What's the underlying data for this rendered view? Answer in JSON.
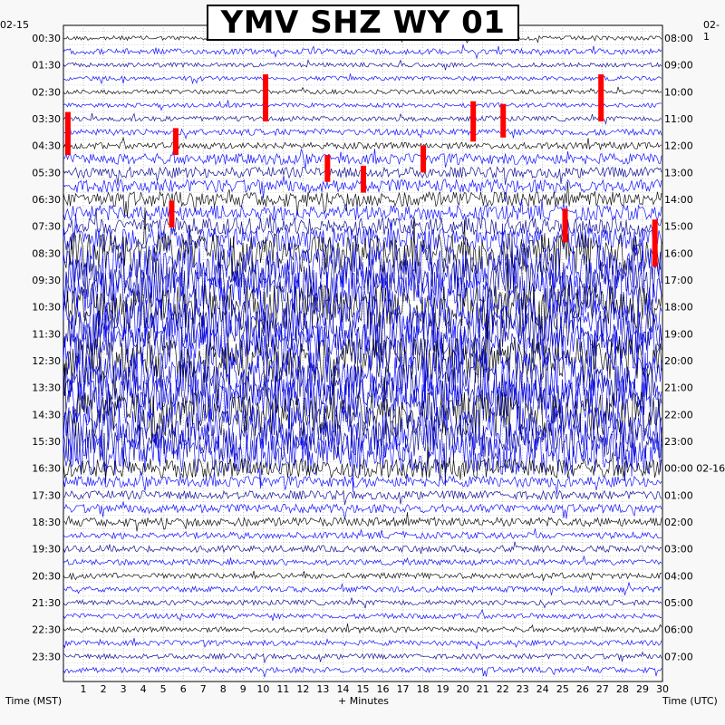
{
  "chart_data": {
    "type": "line",
    "title": "YMV SHZ WY 01",
    "xlabel": "+ Minutes",
    "ylabel_left": "Time (MST)",
    "ylabel_right": "Time (UTC)",
    "start_date_left": "02-15",
    "start_date_right": "02-1",
    "xlim": [
      0,
      30
    ],
    "x_ticks": [
      "1",
      "2",
      "3",
      "4",
      "5",
      "6",
      "7",
      "8",
      "9",
      "10",
      "11",
      "12",
      "13",
      "14",
      "15",
      "16",
      "17",
      "18",
      "19",
      "20",
      "21",
      "22",
      "23",
      "24",
      "25",
      "26",
      "27",
      "28",
      "29",
      "30"
    ],
    "left_tick_labels": [
      "00:30",
      "01:30",
      "02:30",
      "03:30",
      "04:30",
      "05:30",
      "06:30",
      "07:30",
      "08:30",
      "09:30",
      "10:30",
      "11:30",
      "12:30",
      "13:30",
      "14:30",
      "15:30",
      "16:30",
      "17:30",
      "18:30",
      "19:30",
      "20:30",
      "21:30",
      "22:30",
      "23:30"
    ],
    "right_tick_labels": [
      "08:00",
      "09:00",
      "10:00",
      "11:00",
      "12:00",
      "13:00",
      "14:00",
      "15:00",
      "16:00",
      "17:00",
      "18:00",
      "19:00",
      "20:00",
      "21:00",
      "22:00",
      "23:00",
      "00:00 02-16",
      "01:00",
      "02:00",
      "03:00",
      "04:00",
      "05:00",
      "06:00",
      "07:00"
    ],
    "trace_rows": 48,
    "trace_colors": [
      "#00008b",
      "#000000",
      "#ff0000",
      "#0000ff"
    ],
    "grid": true,
    "activity_level": [
      0.05,
      0.08,
      0.05,
      0.05,
      0.05,
      0.05,
      0.06,
      0.1,
      0.1,
      0.2,
      0.2,
      0.25,
      0.3,
      0.3,
      0.35,
      0.5,
      0.9,
      1,
      1,
      1,
      1,
      1,
      1,
      1,
      1,
      1,
      1,
      1,
      1,
      1,
      0.9,
      0.9,
      0.4,
      0.2,
      0.15,
      0.15,
      0.15,
      0.1,
      0.1,
      0.08,
      0.08,
      0.08,
      0.07,
      0.07,
      0.07,
      0.07,
      0.07,
      0.08
    ]
  }
}
